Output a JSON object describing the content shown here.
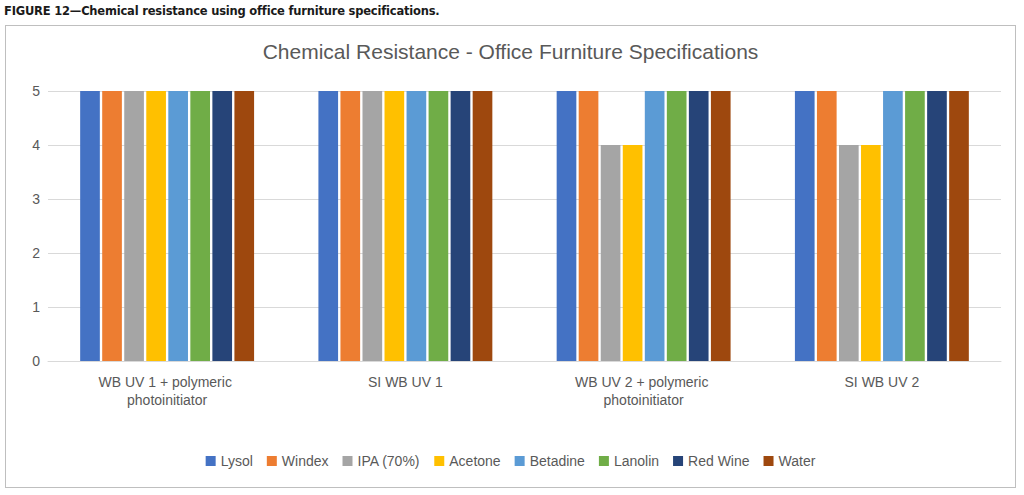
{
  "chart_data": {
    "type": "bar",
    "caption": "FIGURE 12—Chemical resistance using office furniture specifications.",
    "title": "Chemical Resistance - Office Furniture Specifications",
    "categories": [
      "WB UV 1 + polymeric photoinitiator",
      "SI WB UV 1",
      "WB UV 2 + polymeric photoinitiator",
      "SI WB UV 2"
    ],
    "series": [
      {
        "name": "Lysol",
        "color": "#4472c4",
        "values": [
          5,
          5,
          5,
          5
        ]
      },
      {
        "name": "Windex",
        "color": "#ed7d31",
        "values": [
          5,
          5,
          5,
          5
        ]
      },
      {
        "name": "IPA (70%)",
        "color": "#a5a5a5",
        "values": [
          5,
          5,
          4,
          4
        ]
      },
      {
        "name": "Acetone",
        "color": "#ffc000",
        "values": [
          5,
          5,
          4,
          4
        ]
      },
      {
        "name": "Betadine",
        "color": "#5b9bd5",
        "values": [
          5,
          5,
          5,
          5
        ]
      },
      {
        "name": "Lanolin",
        "color": "#70ad47",
        "values": [
          5,
          5,
          5,
          5
        ]
      },
      {
        "name": "Red Wine",
        "color": "#264478",
        "values": [
          5,
          5,
          5,
          5
        ]
      },
      {
        "name": "Water",
        "color": "#9e480e",
        "values": [
          5,
          5,
          5,
          5
        ]
      }
    ],
    "ylim": [
      0,
      5
    ],
    "yticks": [
      0,
      1,
      2,
      3,
      4,
      5
    ],
    "grid": true,
    "legend": "bottom"
  }
}
